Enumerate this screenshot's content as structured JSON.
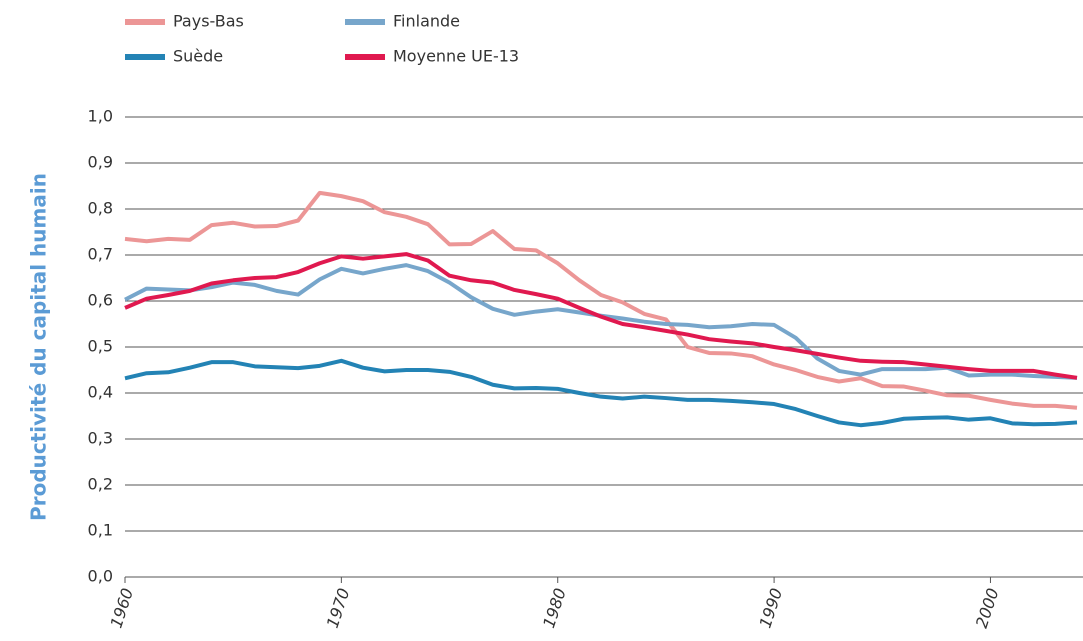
{
  "chart_data": {
    "type": "line",
    "ylabel": "Productivité du capital humain",
    "x": [
      1960,
      1961,
      1962,
      1963,
      1964,
      1965,
      1966,
      1967,
      1968,
      1969,
      1970,
      1971,
      1972,
      1973,
      1974,
      1975,
      1976,
      1977,
      1978,
      1979,
      1980,
      1981,
      1982,
      1983,
      1984,
      1985,
      1986,
      1987,
      1988,
      1989,
      1990,
      1991,
      1992,
      1993,
      1994,
      1995,
      1996,
      1997,
      1998,
      1999,
      2000,
      2001,
      2002,
      2003,
      2004
    ],
    "xlim": [
      1960,
      2004
    ],
    "xticks": [
      1960,
      1970,
      1980,
      1990,
      2000
    ],
    "ylim": [
      0,
      1
    ],
    "yticks": [
      {
        "value": 0,
        "label": "0,0"
      },
      {
        "value": 0.1,
        "label": "0,1"
      },
      {
        "value": 0.2,
        "label": "0,2"
      },
      {
        "value": 0.3,
        "label": "0,3"
      },
      {
        "value": 0.4,
        "label": "0,4"
      },
      {
        "value": 0.5,
        "label": "0,5"
      },
      {
        "value": 0.6,
        "label": "0,6"
      },
      {
        "value": 0.7,
        "label": "0,7"
      },
      {
        "value": 0.8,
        "label": "0,8"
      },
      {
        "value": 0.9,
        "label": "0,9"
      },
      {
        "value": 1,
        "label": "1,0"
      }
    ],
    "grid": true,
    "series": [
      {
        "name": "Pays-Bas",
        "color": "#ec9696",
        "values": [
          0.735,
          0.73,
          0.735,
          0.733,
          0.765,
          0.77,
          0.762,
          0.763,
          0.775,
          0.835,
          0.828,
          0.817,
          0.793,
          0.783,
          0.767,
          0.723,
          0.724,
          0.752,
          0.713,
          0.71,
          0.682,
          0.645,
          0.613,
          0.597,
          0.572,
          0.56,
          0.5,
          0.487,
          0.486,
          0.48,
          0.462,
          0.45,
          0.435,
          0.425,
          0.432,
          0.415,
          0.414,
          0.405,
          0.395,
          0.394,
          0.385,
          0.377,
          0.372,
          0.372,
          0.368
        ]
      },
      {
        "name": "Finlande",
        "color": "#77a6cb",
        "values": [
          0.603,
          0.627,
          0.625,
          0.623,
          0.63,
          0.64,
          0.635,
          0.622,
          0.614,
          0.647,
          0.67,
          0.66,
          0.67,
          0.678,
          0.665,
          0.64,
          0.608,
          0.583,
          0.57,
          0.577,
          0.582,
          0.575,
          0.568,
          0.562,
          0.555,
          0.55,
          0.548,
          0.543,
          0.545,
          0.55,
          0.548,
          0.52,
          0.475,
          0.448,
          0.44,
          0.452,
          0.452,
          0.452,
          0.455,
          0.438,
          0.44,
          0.44,
          0.437,
          0.435,
          0.433
        ]
      },
      {
        "name": "Suède",
        "color": "#2383b5",
        "values": [
          0.432,
          0.443,
          0.445,
          0.455,
          0.467,
          0.467,
          0.458,
          0.456,
          0.454,
          0.459,
          0.47,
          0.455,
          0.447,
          0.45,
          0.45,
          0.446,
          0.435,
          0.418,
          0.41,
          0.411,
          0.409,
          0.4,
          0.392,
          0.388,
          0.392,
          0.389,
          0.385,
          0.385,
          0.383,
          0.38,
          0.376,
          0.365,
          0.35,
          0.336,
          0.33,
          0.335,
          0.344,
          0.346,
          0.347,
          0.342,
          0.345,
          0.334,
          0.332,
          0.333,
          0.336
        ]
      },
      {
        "name": "Moyenne UE-13",
        "color": "#e0194f",
        "values": [
          0.585,
          0.605,
          0.613,
          0.622,
          0.638,
          0.645,
          0.65,
          0.652,
          0.663,
          0.682,
          0.697,
          0.692,
          0.697,
          0.702,
          0.688,
          0.655,
          0.645,
          0.64,
          0.624,
          0.615,
          0.605,
          0.585,
          0.566,
          0.55,
          0.543,
          0.535,
          0.527,
          0.517,
          0.512,
          0.508,
          0.5,
          0.493,
          0.485,
          0.477,
          0.47,
          0.468,
          0.467,
          0.462,
          0.457,
          0.452,
          0.448,
          0.448,
          0.448,
          0.44,
          0.433
        ]
      }
    ]
  }
}
